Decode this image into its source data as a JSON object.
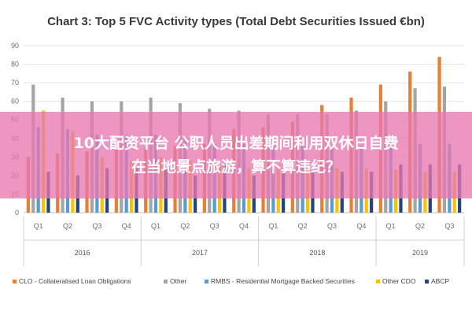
{
  "chart_data": {
    "type": "bar",
    "title": "Chart 3: Top 5 FVC Activity types (Total Debt Securities Issued €bn)",
    "ylim": [
      0,
      90
    ],
    "yticks": [
      0,
      10,
      20,
      30,
      40,
      50,
      60,
      70,
      80,
      90
    ],
    "grid": true,
    "legend_position": "bottom",
    "categories": [
      "Q1",
      "Q2",
      "Q3",
      "Q4",
      "Q1",
      "Q2",
      "Q3",
      "Q4",
      "Q1",
      "Q2",
      "Q3",
      "Q4",
      "Q1",
      "Q2",
      "Q3"
    ],
    "years": [
      {
        "label": "2016",
        "start": 0,
        "end": 3
      },
      {
        "label": "2017",
        "start": 4,
        "end": 7
      },
      {
        "label": "2018",
        "start": 8,
        "end": 11
      },
      {
        "label": "2019",
        "start": 12,
        "end": 14
      }
    ],
    "series": [
      {
        "name": "CLO - Collateralised Loan Obligations",
        "color": "#ed7d31",
        "values": [
          30,
          32,
          33,
          34,
          35,
          36,
          37,
          45,
          46,
          49,
          58,
          62,
          69,
          76,
          84
        ]
      },
      {
        "name": "Other",
        "color": "#a5a5a5",
        "values": [
          69,
          62,
          60,
          60,
          62,
          59,
          56,
          55,
          53,
          53,
          53,
          55,
          60,
          67,
          68
        ]
      },
      {
        "name": "RMBS - Residential Mortgage Backed Securities",
        "color": "#5b9bd5",
        "values": [
          46,
          45,
          42,
          42,
          42,
          40,
          37,
          37,
          37,
          36,
          36,
          36,
          37,
          37,
          37
        ]
      },
      {
        "name": "Other CDO",
        "color": "#ffc000",
        "values": [
          55,
          44,
          30,
          28,
          30,
          28,
          26,
          24,
          24,
          24,
          24,
          24,
          23,
          22,
          22
        ]
      },
      {
        "name": "ABCP",
        "color": "#264478",
        "values": [
          22,
          20,
          24,
          24,
          24,
          20,
          26,
          20,
          22,
          22,
          22,
          22,
          26,
          26,
          26
        ]
      }
    ]
  },
  "overlay": {
    "line1": "10大配资平台 公职人员出差期间利用双休日自费",
    "line2": "在当地景点旅游，算不算违纪？"
  }
}
